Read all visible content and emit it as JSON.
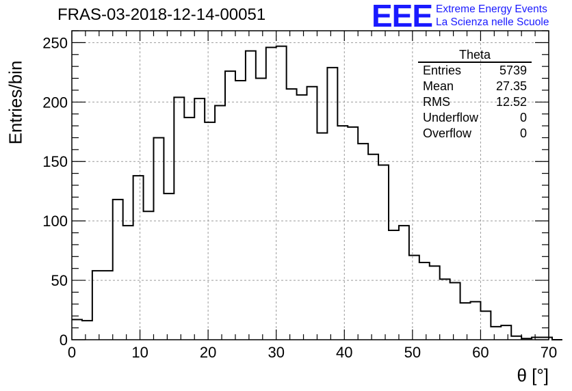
{
  "chart_data": {
    "type": "histogram",
    "title": "FRAS-03-2018-12-14-00051",
    "xlabel": "θ [°]",
    "ylabel": "Entries/bin",
    "xlim": [
      0,
      70
    ],
    "ylim": [
      0,
      260
    ],
    "xticks": [
      0,
      10,
      20,
      30,
      40,
      50,
      60,
      70
    ],
    "yticks": [
      0,
      50,
      100,
      150,
      200,
      250
    ],
    "grid": true,
    "bin_width": 1.5,
    "x_start": 0,
    "values": [
      17,
      16,
      58,
      58,
      118,
      96,
      138,
      108,
      170,
      123,
      204,
      187,
      203,
      183,
      197,
      226,
      218,
      243,
      220,
      246,
      247,
      211,
      206,
      213,
      174,
      229,
      180,
      179,
      165,
      156,
      147,
      92,
      96,
      71,
      65,
      62,
      51,
      48,
      31,
      32,
      24,
      11,
      12,
      3,
      1,
      2,
      2,
      0
    ],
    "stats": {
      "name": "Theta",
      "rows": [
        {
          "label": "Entries",
          "value": "5739"
        },
        {
          "label": "Mean",
          "value": "27.35"
        },
        {
          "label": "RMS",
          "value": "12.52"
        },
        {
          "label": "Underflow",
          "value": "0"
        },
        {
          "label": "Overflow",
          "value": "0"
        }
      ]
    }
  },
  "logo": {
    "mark": "EEE",
    "line1": "Extreme Energy Events",
    "line2": "La Scienza nelle Scuole",
    "color": "#1a1aff"
  }
}
